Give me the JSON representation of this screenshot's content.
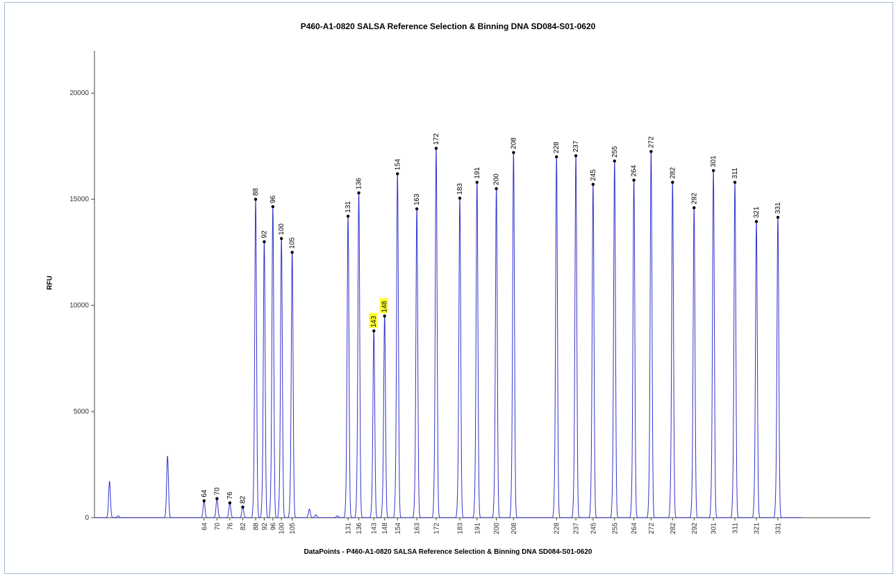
{
  "chart_title": "P460-A1-0820 SALSA Reference Selection & Binning DNA SD084-S01-0620",
  "chart_data": {
    "type": "line",
    "title": "P460-A1-0820 SALSA Reference Selection & Binning DNA SD084-S01-0620",
    "xlabel": "DataPoints - P460-A1-0820 SALSA Reference Selection & Binning DNA SD084-S01-0620",
    "ylabel": "RFU",
    "ylim": [
      0,
      22000
    ],
    "y_ticks": [
      "0",
      "5000",
      "10000",
      "15000",
      "20000"
    ],
    "y_tick_values": [
      0,
      5000,
      10000,
      15000,
      20000
    ],
    "grid": false,
    "line_color": "#3333cc",
    "highlight_color": "#ffff33",
    "peaks": [
      {
        "label": "64",
        "x": 64,
        "rfu": 800,
        "highlight": false
      },
      {
        "label": "70",
        "x": 70,
        "rfu": 900,
        "highlight": false
      },
      {
        "label": "76",
        "x": 76,
        "rfu": 700,
        "highlight": false
      },
      {
        "label": "82",
        "x": 82,
        "rfu": 500,
        "highlight": false
      },
      {
        "label": "88",
        "x": 88,
        "rfu": 15000,
        "highlight": false
      },
      {
        "label": "92",
        "x": 92,
        "rfu": 13000,
        "highlight": false
      },
      {
        "label": "96",
        "x": 96,
        "rfu": 14650,
        "highlight": false
      },
      {
        "label": "100",
        "x": 100,
        "rfu": 13150,
        "highlight": false
      },
      {
        "label": "105",
        "x": 105,
        "rfu": 12500,
        "highlight": false
      },
      {
        "label": "131",
        "x": 131,
        "rfu": 14200,
        "highlight": false
      },
      {
        "label": "136",
        "x": 136,
        "rfu": 15300,
        "highlight": false
      },
      {
        "label": "143",
        "x": 143,
        "rfu": 8800,
        "highlight": true
      },
      {
        "label": "148",
        "x": 148,
        "rfu": 9500,
        "highlight": true
      },
      {
        "label": "154",
        "x": 154,
        "rfu": 16200,
        "highlight": false
      },
      {
        "label": "163",
        "x": 163,
        "rfu": 14550,
        "highlight": false
      },
      {
        "label": "172",
        "x": 172,
        "rfu": 17400,
        "highlight": false
      },
      {
        "label": "183",
        "x": 183,
        "rfu": 15050,
        "highlight": false
      },
      {
        "label": "191",
        "x": 191,
        "rfu": 15800,
        "highlight": false
      },
      {
        "label": "200",
        "x": 200,
        "rfu": 15500,
        "highlight": false
      },
      {
        "label": "208",
        "x": 208,
        "rfu": 17200,
        "highlight": false
      },
      {
        "label": "228",
        "x": 228,
        "rfu": 17000,
        "highlight": false
      },
      {
        "label": "237",
        "x": 237,
        "rfu": 17050,
        "highlight": false
      },
      {
        "label": "245",
        "x": 245,
        "rfu": 15700,
        "highlight": false
      },
      {
        "label": "255",
        "x": 255,
        "rfu": 16800,
        "highlight": false
      },
      {
        "label": "264",
        "x": 264,
        "rfu": 15900,
        "highlight": false
      },
      {
        "label": "272",
        "x": 272,
        "rfu": 17250,
        "highlight": false
      },
      {
        "label": "282",
        "x": 282,
        "rfu": 15800,
        "highlight": false
      },
      {
        "label": "292",
        "x": 292,
        "rfu": 14600,
        "highlight": false
      },
      {
        "label": "301",
        "x": 301,
        "rfu": 16350,
        "highlight": false
      },
      {
        "label": "311",
        "x": 311,
        "rfu": 15800,
        "highlight": false
      },
      {
        "label": "321",
        "x": 321,
        "rfu": 13950,
        "highlight": false
      },
      {
        "label": "331",
        "x": 331,
        "rfu": 14150,
        "highlight": false
      }
    ],
    "unlabeled_peaks": [
      {
        "x": 20,
        "rfu": 1700
      },
      {
        "x": 24,
        "rfu": 80
      },
      {
        "x": 47,
        "rfu": 2900
      },
      {
        "x": 113,
        "rfu": 400
      },
      {
        "x": 116,
        "rfu": 130
      },
      {
        "x": 126,
        "rfu": 80
      }
    ]
  }
}
